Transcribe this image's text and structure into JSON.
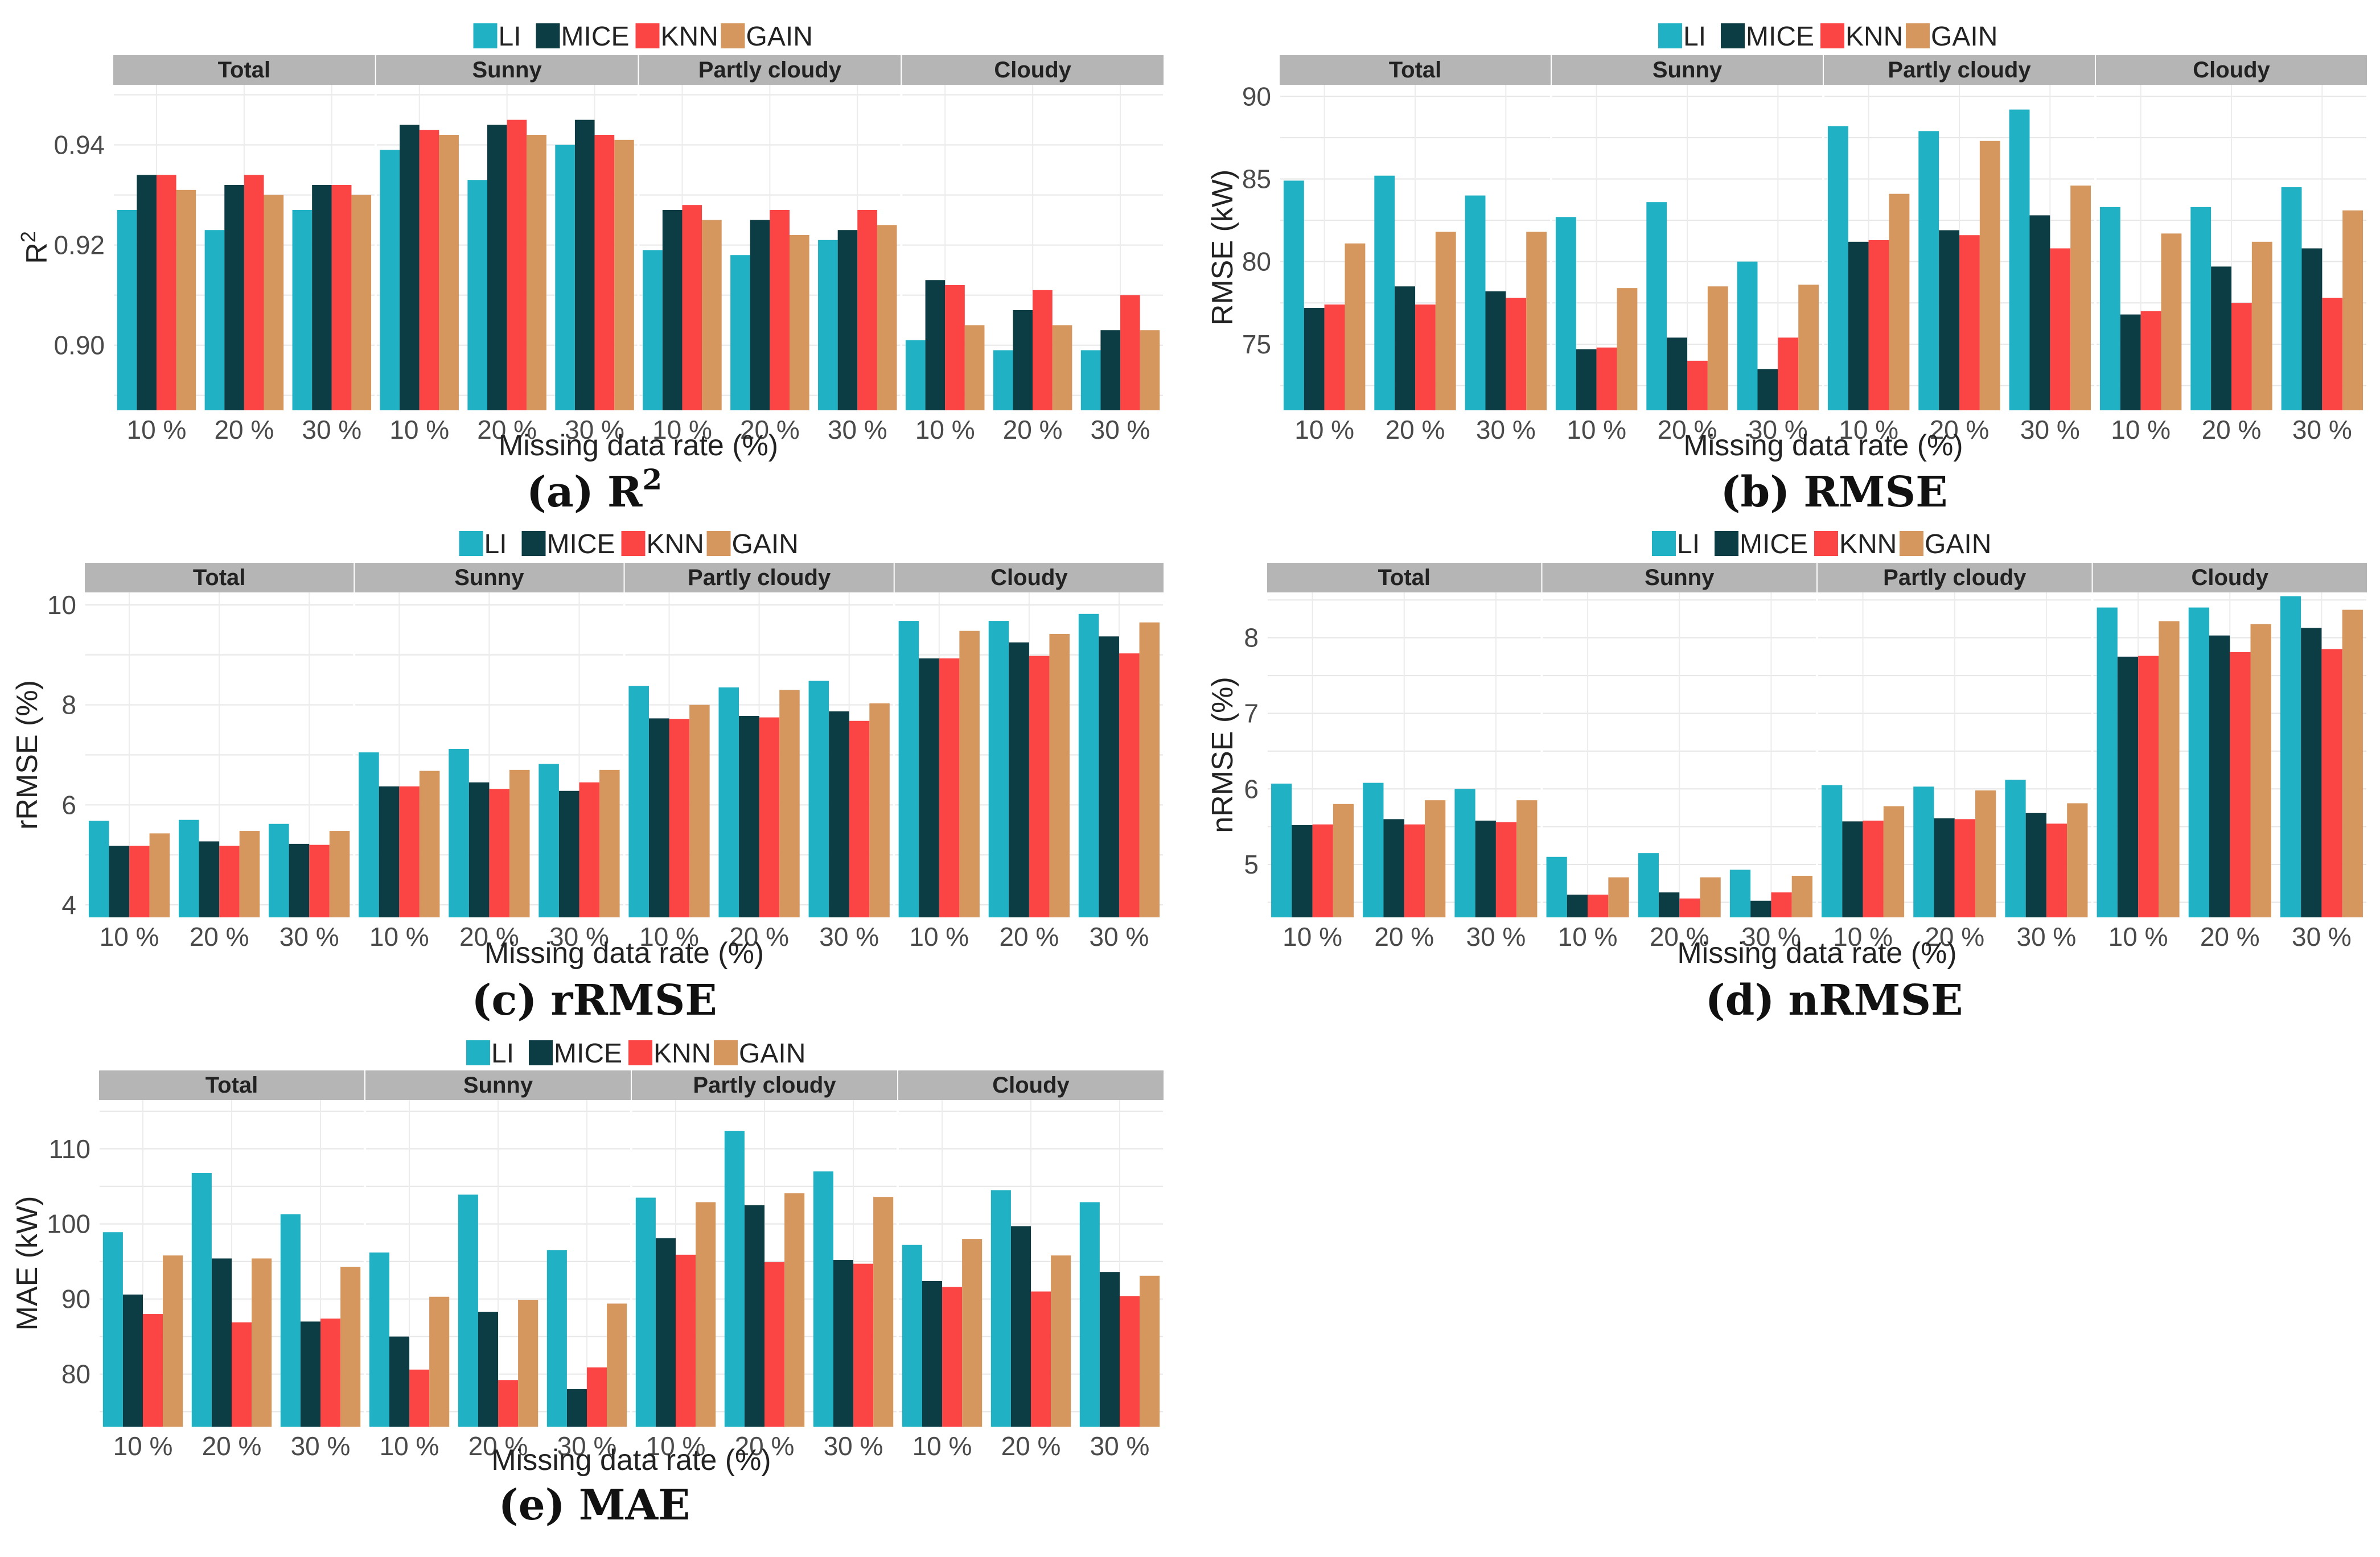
{
  "colors": {
    "LI": "#20b2c4",
    "MICE": "#0d3d44",
    "KNN": "#fb4444",
    "GAIN": "#d6975e"
  },
  "legend": [
    "LI",
    "MICE",
    "KNN",
    "GAIN"
  ],
  "chart_data": [
    {
      "type": "bar",
      "panel": "a",
      "caption_prefix": "(a)",
      "caption_main": "R",
      "caption_sup": "2",
      "ylabel_main": "R",
      "ylabel_sup": "2",
      "xlabel": "Missing data rate (%)",
      "facets": [
        "Total",
        "Sunny",
        "Partly cloudy",
        "Cloudy"
      ],
      "categories": [
        "10 %",
        "20 %",
        "30 %"
      ],
      "ylim": [
        0.887,
        0.952
      ],
      "yticks": [
        0.9,
        0.92,
        0.94
      ],
      "ytick_labels": [
        "0.90",
        "0.92",
        "0.94"
      ],
      "series": [
        {
          "name": "LI",
          "values": [
            [
              0.927,
              0.923,
              0.927
            ],
            [
              0.939,
              0.933,
              0.94
            ],
            [
              0.919,
              0.918,
              0.921
            ],
            [
              0.901,
              0.899,
              0.899
            ]
          ]
        },
        {
          "name": "MICE",
          "values": [
            [
              0.934,
              0.932,
              0.932
            ],
            [
              0.944,
              0.944,
              0.945
            ],
            [
              0.927,
              0.925,
              0.923
            ],
            [
              0.913,
              0.907,
              0.903
            ]
          ]
        },
        {
          "name": "KNN",
          "values": [
            [
              0.934,
              0.934,
              0.932
            ],
            [
              0.943,
              0.945,
              0.942
            ],
            [
              0.928,
              0.927,
              0.927
            ],
            [
              0.912,
              0.911,
              0.91
            ]
          ]
        },
        {
          "name": "GAIN",
          "values": [
            [
              0.931,
              0.93,
              0.93
            ],
            [
              0.942,
              0.942,
              0.941
            ],
            [
              0.925,
              0.922,
              0.924
            ],
            [
              0.904,
              0.904,
              0.903
            ]
          ]
        }
      ]
    },
    {
      "type": "bar",
      "panel": "b",
      "caption_prefix": "(b)",
      "caption_main": "RMSE",
      "caption_sup": "",
      "ylabel_main": "RMSE (kW)",
      "ylabel_sup": "",
      "xlabel": "Missing data rate (%)",
      "facets": [
        "Total",
        "Sunny",
        "Partly cloudy",
        "Cloudy"
      ],
      "categories": [
        "10 %",
        "20 %",
        "30 %"
      ],
      "ylim": [
        71,
        90.7
      ],
      "yticks": [
        75,
        80,
        85,
        90
      ],
      "ytick_labels": [
        "75",
        "80",
        "85",
        "90"
      ],
      "series": [
        {
          "name": "LI",
          "values": [
            [
              84.9,
              85.2,
              84.0
            ],
            [
              82.7,
              83.6,
              80.0
            ],
            [
              88.2,
              87.9,
              89.2
            ],
            [
              83.3,
              83.3,
              84.5
            ]
          ]
        },
        {
          "name": "MICE",
          "values": [
            [
              77.2,
              78.5,
              78.2
            ],
            [
              74.7,
              75.4,
              73.5
            ],
            [
              81.2,
              81.9,
              82.8
            ],
            [
              76.8,
              79.7,
              80.8
            ]
          ]
        },
        {
          "name": "KNN",
          "values": [
            [
              77.4,
              77.4,
              77.8
            ],
            [
              74.8,
              74.0,
              75.4
            ],
            [
              81.3,
              81.6,
              80.8
            ],
            [
              77.0,
              77.5,
              77.8
            ]
          ]
        },
        {
          "name": "GAIN",
          "values": [
            [
              81.1,
              81.8,
              81.8
            ],
            [
              78.4,
              78.5,
              78.6
            ],
            [
              84.1,
              87.3,
              84.6
            ],
            [
              81.7,
              81.2,
              83.1
            ]
          ]
        }
      ]
    },
    {
      "type": "bar",
      "panel": "c",
      "caption_prefix": "(c)",
      "caption_main": "rRMSE",
      "caption_sup": "",
      "ylabel_main": "rRMSE (%)",
      "ylabel_sup": "",
      "xlabel": "Missing data rate (%)",
      "facets": [
        "Total",
        "Sunny",
        "Partly cloudy",
        "Cloudy"
      ],
      "categories": [
        "10 %",
        "20 %",
        "30 %"
      ],
      "ylim": [
        3.75,
        10.25
      ],
      "yticks": [
        4,
        6,
        8,
        10
      ],
      "ytick_labels": [
        "4",
        "6",
        "8",
        "10"
      ],
      "series": [
        {
          "name": "LI",
          "values": [
            [
              5.68,
              5.7,
              5.62
            ],
            [
              7.05,
              7.12,
              6.82
            ],
            [
              8.38,
              8.35,
              8.48
            ],
            [
              9.68,
              9.68,
              9.82
            ]
          ]
        },
        {
          "name": "MICE",
          "values": [
            [
              5.18,
              5.27,
              5.22
            ],
            [
              6.37,
              6.45,
              6.28
            ],
            [
              7.73,
              7.78,
              7.87
            ],
            [
              8.93,
              9.25,
              9.37
            ]
          ]
        },
        {
          "name": "KNN",
          "values": [
            [
              5.18,
              5.18,
              5.2
            ],
            [
              6.37,
              6.32,
              6.45
            ],
            [
              7.72,
              7.75,
              7.68
            ],
            [
              8.93,
              8.98,
              9.03
            ]
          ]
        },
        {
          "name": "GAIN",
          "values": [
            [
              5.43,
              5.48,
              5.48
            ],
            [
              6.68,
              6.7,
              6.7
            ],
            [
              8.0,
              8.3,
              8.03
            ],
            [
              9.48,
              9.42,
              9.65
            ]
          ]
        }
      ]
    },
    {
      "type": "bar",
      "panel": "d",
      "caption_prefix": "(d)",
      "caption_main": "nRMSE",
      "caption_sup": "",
      "ylabel_main": "nRMSE (%)",
      "ylabel_sup": "",
      "xlabel": "Missing data rate (%)",
      "facets": [
        "Total",
        "Sunny",
        "Partly cloudy",
        "Cloudy"
      ],
      "categories": [
        "10 %",
        "20 %",
        "30 %"
      ],
      "ylim": [
        4.3,
        8.6
      ],
      "yticks": [
        5,
        6,
        7,
        8
      ],
      "ytick_labels": [
        "5",
        "6",
        "7",
        "8"
      ],
      "series": [
        {
          "name": "LI",
          "values": [
            [
              6.07,
              6.08,
              6.0
            ],
            [
              5.1,
              5.15,
              4.93
            ],
            [
              6.05,
              6.03,
              6.12
            ],
            [
              8.4,
              8.4,
              8.55
            ]
          ]
        },
        {
          "name": "MICE",
          "values": [
            [
              5.52,
              5.6,
              5.58
            ],
            [
              4.6,
              4.63,
              4.52
            ],
            [
              5.57,
              5.61,
              5.68
            ],
            [
              7.75,
              8.03,
              8.13
            ]
          ]
        },
        {
          "name": "KNN",
          "values": [
            [
              5.53,
              5.53,
              5.56
            ],
            [
              4.6,
              4.55,
              4.63
            ],
            [
              5.58,
              5.6,
              5.54
            ],
            [
              7.76,
              7.81,
              7.85
            ]
          ]
        },
        {
          "name": "GAIN",
          "values": [
            [
              5.8,
              5.85,
              5.85
            ],
            [
              4.83,
              4.83,
              4.85
            ],
            [
              5.77,
              5.98,
              5.81
            ],
            [
              8.22,
              8.18,
              8.37
            ]
          ]
        }
      ]
    },
    {
      "type": "bar",
      "panel": "e",
      "caption_prefix": "(e)",
      "caption_main": "MAE",
      "caption_sup": "",
      "ylabel_main": "MAE (kW)",
      "ylabel_sup": "",
      "xlabel": "Missing data rate (%)",
      "facets": [
        "Total",
        "Sunny",
        "Partly cloudy",
        "Cloudy"
      ],
      "categories": [
        "10 %",
        "20 %",
        "30 %"
      ],
      "ylim": [
        73,
        116.5
      ],
      "yticks": [
        80,
        90,
        100,
        110
      ],
      "ytick_labels": [
        "80",
        "90",
        "100",
        "110"
      ],
      "series": [
        {
          "name": "LI",
          "values": [
            [
              98.9,
              106.8,
              101.3
            ],
            [
              96.2,
              103.9,
              96.5
            ],
            [
              103.5,
              112.4,
              107.0
            ],
            [
              97.2,
              104.5,
              102.9
            ]
          ]
        },
        {
          "name": "MICE",
          "values": [
            [
              90.6,
              95.4,
              87.0
            ],
            [
              85.0,
              88.3,
              78.0
            ],
            [
              98.1,
              102.5,
              95.2
            ],
            [
              92.4,
              99.7,
              93.6
            ]
          ]
        },
        {
          "name": "KNN",
          "values": [
            [
              88.0,
              86.9,
              87.4
            ],
            [
              80.6,
              79.2,
              80.9
            ],
            [
              95.9,
              94.9,
              94.7
            ],
            [
              91.6,
              91.0,
              90.4
            ]
          ]
        },
        {
          "name": "GAIN",
          "values": [
            [
              95.8,
              95.4,
              94.3
            ],
            [
              90.3,
              89.9,
              89.4
            ],
            [
              102.9,
              104.1,
              103.6
            ],
            [
              98.0,
              95.8,
              93.1
            ]
          ]
        }
      ]
    }
  ]
}
